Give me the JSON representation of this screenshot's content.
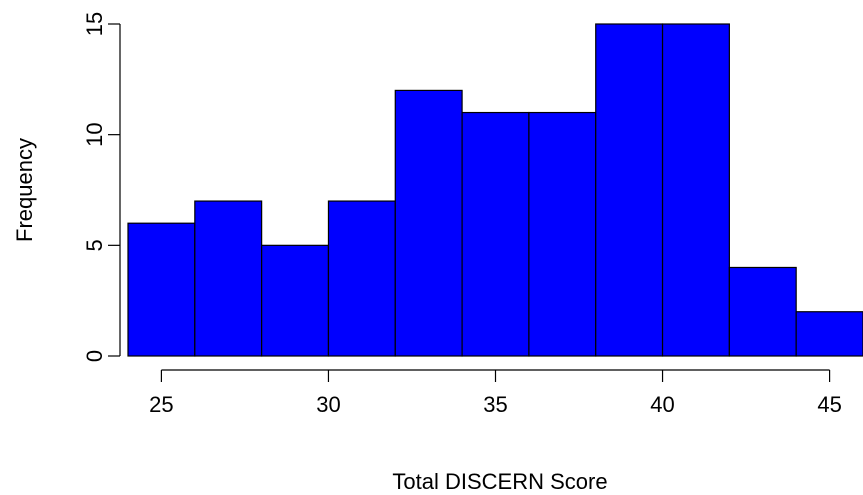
{
  "chart_data": {
    "type": "bar",
    "subtype": "histogram",
    "title": "",
    "xlabel": "Total DISCERN Score",
    "ylabel": "Frequency",
    "bins": [
      {
        "start": 24,
        "end": 26,
        "count": 6
      },
      {
        "start": 26,
        "end": 28,
        "count": 7
      },
      {
        "start": 28,
        "end": 30,
        "count": 5
      },
      {
        "start": 30,
        "end": 32,
        "count": 7
      },
      {
        "start": 32,
        "end": 34,
        "count": 12
      },
      {
        "start": 34,
        "end": 36,
        "count": 11
      },
      {
        "start": 36,
        "end": 38,
        "count": 11
      },
      {
        "start": 38,
        "end": 40,
        "count": 15
      },
      {
        "start": 40,
        "end": 42,
        "count": 15
      },
      {
        "start": 42,
        "end": 44,
        "count": 4
      },
      {
        "start": 44,
        "end": 46,
        "count": 2
      }
    ],
    "xlim": [
      24,
      46
    ],
    "ylim": [
      0,
      15
    ],
    "x_ticks": [
      25,
      30,
      35,
      40,
      45
    ],
    "y_ticks": [
      0,
      5,
      10,
      15
    ],
    "bar_color": "#0000ff",
    "bar_edge_color": "#000000",
    "grid": false,
    "legend": "none"
  }
}
